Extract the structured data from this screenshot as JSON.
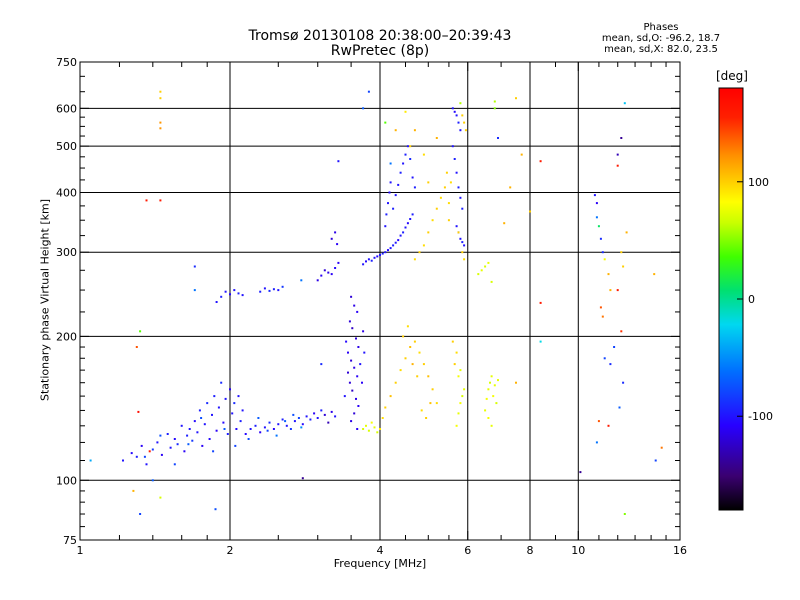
{
  "chart_data": {
    "type": "scatter",
    "title": "Tromsø 20130108 20:38:00–20:39:43",
    "subtitle": "RwPretec (8p)",
    "legend_title": "Phases",
    "legend_lines": [
      "mean, sd,O: -96.2, 18.7",
      "mean, sd,X:  82.0, 23.5"
    ],
    "xlabel": "Frequency [MHz]",
    "ylabel": "Stationary phase Virtual Height [km]",
    "x_scale": "log",
    "y_scale": "log",
    "xlim": [
      1,
      16
    ],
    "ylim": [
      75,
      750
    ],
    "x_ticks": [
      1,
      2,
      4,
      6,
      8,
      10,
      16
    ],
    "x_gridlines": [
      2,
      4,
      6,
      8,
      10
    ],
    "y_ticks": [
      75,
      100,
      200,
      300,
      400,
      500,
      600,
      750
    ],
    "y_gridlines": [
      100,
      200,
      300,
      400,
      500,
      600
    ],
    "grid": true,
    "colorbar": {
      "label": "[deg]",
      "range": [
        -180,
        180
      ],
      "ticks": [
        -100,
        0,
        100
      ]
    },
    "points": [
      [
        1.22,
        110,
        -100
      ],
      [
        1.27,
        114,
        -105
      ],
      [
        1.3,
        112,
        -95
      ],
      [
        1.33,
        118,
        -110
      ],
      [
        1.36,
        108,
        -100
      ],
      [
        1.4,
        116,
        -85
      ],
      [
        1.43,
        120,
        -100
      ],
      [
        1.46,
        113,
        -110
      ],
      [
        1.5,
        125,
        -95
      ],
      [
        1.52,
        117,
        -100
      ],
      [
        1.55,
        122,
        -105
      ],
      [
        1.57,
        119,
        -90
      ],
      [
        1.6,
        130,
        -100
      ],
      [
        1.62,
        115,
        -110
      ],
      [
        1.64,
        124,
        -95
      ],
      [
        1.66,
        128,
        -100
      ],
      [
        1.68,
        121,
        -85
      ],
      [
        1.7,
        133,
        -105
      ],
      [
        1.72,
        126,
        -100
      ],
      [
        1.74,
        140,
        -95
      ],
      [
        1.76,
        118,
        -110
      ],
      [
        1.78,
        131,
        -100
      ],
      [
        1.8,
        145,
        -90
      ],
      [
        1.82,
        122,
        -105
      ],
      [
        1.84,
        137,
        -100
      ],
      [
        1.86,
        150,
        -95
      ],
      [
        1.88,
        127,
        -110
      ],
      [
        1.9,
        142,
        -100
      ],
      [
        1.92,
        160,
        -90
      ],
      [
        1.94,
        132,
        -105
      ],
      [
        1.96,
        148,
        -100
      ],
      [
        1.98,
        125,
        -95
      ],
      [
        2.0,
        155,
        -110
      ],
      [
        2.02,
        138,
        -100
      ],
      [
        2.04,
        145,
        -90
      ],
      [
        2.06,
        128,
        -105
      ],
      [
        2.08,
        150,
        -100
      ],
      [
        2.1,
        133,
        -95
      ],
      [
        2.12,
        140,
        -100
      ],
      [
        2.15,
        125,
        -105
      ],
      [
        2.2,
        128,
        -100
      ],
      [
        2.25,
        130,
        -95
      ],
      [
        2.3,
        126,
        -110
      ],
      [
        2.35,
        129,
        -100
      ],
      [
        2.4,
        132,
        -90
      ],
      [
        2.45,
        128,
        -105
      ],
      [
        2.5,
        131,
        -100
      ],
      [
        2.55,
        134,
        -95
      ],
      [
        2.6,
        130,
        -100
      ],
      [
        2.65,
        128,
        -85
      ],
      [
        2.7,
        133,
        -100
      ],
      [
        2.75,
        135,
        -80
      ],
      [
        2.8,
        131,
        -105
      ],
      [
        2.85,
        136,
        -100
      ],
      [
        2.9,
        134,
        -95
      ],
      [
        2.95,
        138,
        -110
      ],
      [
        3.0,
        135,
        -100
      ],
      [
        3.05,
        140,
        -95
      ],
      [
        3.1,
        137,
        -120
      ],
      [
        3.15,
        132,
        -130
      ],
      [
        3.2,
        139,
        -115
      ],
      [
        3.25,
        136,
        -100
      ],
      [
        1.35,
        112,
        -80
      ],
      [
        1.45,
        124,
        -75
      ],
      [
        1.55,
        108,
        -80
      ],
      [
        1.65,
        119,
        -70
      ],
      [
        1.75,
        135,
        -75
      ],
      [
        1.85,
        115,
        -80
      ],
      [
        1.95,
        128,
        -70
      ],
      [
        2.05,
        118,
        -80
      ],
      [
        2.18,
        122,
        -75
      ],
      [
        2.28,
        135,
        -70
      ],
      [
        2.38,
        127,
        -80
      ],
      [
        2.48,
        124,
        -60
      ],
      [
        2.58,
        133,
        -70
      ],
      [
        2.68,
        137,
        -75
      ],
      [
        2.78,
        129,
        -50
      ],
      [
        1.88,
        236,
        -100
      ],
      [
        1.92,
        242,
        -95
      ],
      [
        1.96,
        248,
        -100
      ],
      [
        2.0,
        245,
        -105
      ],
      [
        2.04,
        250,
        -100
      ],
      [
        2.08,
        246,
        -95
      ],
      [
        2.12,
        244,
        -100
      ],
      [
        2.3,
        248,
        -95
      ],
      [
        2.35,
        252,
        -100
      ],
      [
        2.4,
        249,
        -90
      ],
      [
        2.45,
        251,
        -95
      ],
      [
        2.5,
        250,
        -100
      ],
      [
        2.55,
        254,
        -85
      ],
      [
        2.78,
        262,
        -60
      ],
      [
        3.0,
        262,
        -115
      ],
      [
        3.05,
        268,
        -110
      ],
      [
        3.1,
        275,
        -120
      ],
      [
        3.15,
        272,
        -115
      ],
      [
        3.2,
        270,
        -110
      ],
      [
        3.25,
        278,
        -105
      ],
      [
        3.3,
        285,
        -110
      ],
      [
        3.2,
        320,
        -120
      ],
      [
        3.25,
        330,
        -115
      ],
      [
        3.28,
        312,
        -110
      ],
      [
        3.5,
        242,
        -120
      ],
      [
        3.55,
        232,
        -115
      ],
      [
        3.6,
        225,
        -110
      ],
      [
        3.48,
        215,
        -120
      ],
      [
        3.52,
        208,
        -125
      ],
      [
        3.58,
        198,
        -120
      ],
      [
        3.62,
        190,
        -115
      ],
      [
        3.45,
        185,
        -110
      ],
      [
        3.5,
        178,
        -120
      ],
      [
        3.55,
        172,
        -115
      ],
      [
        3.6,
        165,
        -110
      ],
      [
        3.48,
        160,
        -120
      ],
      [
        3.52,
        154,
        -125
      ],
      [
        3.58,
        148,
        -115
      ],
      [
        3.62,
        143,
        -110
      ],
      [
        3.55,
        138,
        -120
      ],
      [
        3.5,
        133,
        -115
      ],
      [
        3.6,
        128,
        -110
      ],
      [
        3.65,
        175,
        -100
      ],
      [
        3.42,
        195,
        -105
      ],
      [
        3.7,
        205,
        -115
      ],
      [
        3.68,
        160,
        -110
      ],
      [
        3.4,
        150,
        -100
      ],
      [
        3.45,
        168,
        -120
      ],
      [
        3.72,
        185,
        -100
      ],
      [
        3.7,
        283,
        -100
      ],
      [
        3.75,
        287,
        -105
      ],
      [
        3.8,
        290,
        -100
      ],
      [
        3.85,
        288,
        -95
      ],
      [
        3.9,
        292,
        -100
      ],
      [
        3.95,
        294,
        -105
      ],
      [
        4.0,
        296,
        -100
      ],
      [
        4.05,
        298,
        -95
      ],
      [
        4.1,
        300,
        -100
      ],
      [
        4.15,
        303,
        -105
      ],
      [
        4.2,
        306,
        -100
      ],
      [
        4.25,
        310,
        -95
      ],
      [
        4.3,
        314,
        -100
      ],
      [
        4.35,
        318,
        -105
      ],
      [
        4.4,
        325,
        -100
      ],
      [
        4.45,
        330,
        -95
      ],
      [
        4.5,
        338,
        -100
      ],
      [
        4.55,
        345,
        -105
      ],
      [
        4.6,
        352,
        -100
      ],
      [
        4.65,
        360,
        -95
      ],
      [
        4.1,
        340,
        -100
      ],
      [
        4.12,
        360,
        -95
      ],
      [
        4.15,
        380,
        -100
      ],
      [
        4.18,
        400,
        -105
      ],
      [
        4.2,
        420,
        -100
      ],
      [
        4.25,
        370,
        -95
      ],
      [
        4.3,
        395,
        -100
      ],
      [
        4.35,
        415,
        -100
      ],
      [
        4.4,
        440,
        -95
      ],
      [
        4.45,
        460,
        -100
      ],
      [
        4.5,
        480,
        -95
      ],
      [
        4.55,
        500,
        -100
      ],
      [
        4.6,
        470,
        -90
      ],
      [
        4.65,
        430,
        -100
      ],
      [
        4.7,
        410,
        -95
      ],
      [
        5.6,
        600,
        -100
      ],
      [
        5.65,
        590,
        -105
      ],
      [
        5.7,
        580,
        -100
      ],
      [
        5.75,
        560,
        -95
      ],
      [
        5.8,
        540,
        -100
      ],
      [
        5.6,
        500,
        -100
      ],
      [
        5.65,
        470,
        -95
      ],
      [
        5.7,
        440,
        -100
      ],
      [
        5.75,
        410,
        -95
      ],
      [
        5.8,
        390,
        -100
      ],
      [
        5.85,
        370,
        -95
      ],
      [
        5.7,
        340,
        -100
      ],
      [
        5.75,
        330,
        -95
      ],
      [
        5.8,
        320,
        -100
      ],
      [
        5.85,
        315,
        -95
      ],
      [
        5.9,
        310,
        -100
      ],
      [
        4.0,
        128,
        90
      ],
      [
        4.05,
        135,
        95
      ],
      [
        4.1,
        142,
        100
      ],
      [
        4.2,
        150,
        105
      ],
      [
        4.3,
        160,
        100
      ],
      [
        4.4,
        170,
        95
      ],
      [
        4.5,
        180,
        100
      ],
      [
        4.6,
        190,
        105
      ],
      [
        4.7,
        195,
        100
      ],
      [
        4.8,
        185,
        95
      ],
      [
        4.9,
        175,
        100
      ],
      [
        5.0,
        165,
        105
      ],
      [
        5.1,
        155,
        100
      ],
      [
        5.2,
        145,
        95
      ],
      [
        4.45,
        200,
        100
      ],
      [
        4.55,
        210,
        95
      ],
      [
        4.65,
        175,
        110
      ],
      [
        4.75,
        165,
        100
      ],
      [
        4.85,
        140,
        95
      ],
      [
        4.95,
        135,
        100
      ],
      [
        5.05,
        145,
        105
      ],
      [
        3.7,
        128,
        70
      ],
      [
        3.75,
        130,
        75
      ],
      [
        3.8,
        127,
        70
      ],
      [
        3.85,
        132,
        80
      ],
      [
        3.9,
        129,
        75
      ],
      [
        3.95,
        126,
        70
      ],
      [
        4.7,
        290,
        95
      ],
      [
        4.8,
        300,
        100
      ],
      [
        4.9,
        310,
        95
      ],
      [
        5.0,
        330,
        100
      ],
      [
        5.1,
        350,
        95
      ],
      [
        5.2,
        370,
        100
      ],
      [
        5.3,
        390,
        95
      ],
      [
        5.4,
        410,
        100
      ],
      [
        5.5,
        380,
        95
      ],
      [
        5.5,
        350,
        100
      ],
      [
        5.55,
        420,
        95
      ],
      [
        5.45,
        440,
        100
      ],
      [
        5.7,
        130,
        80
      ],
      [
        5.75,
        138,
        75
      ],
      [
        5.8,
        145,
        80
      ],
      [
        5.85,
        150,
        70
      ],
      [
        5.9,
        155,
        75
      ],
      [
        5.75,
        165,
        80
      ],
      [
        5.8,
        170,
        75
      ],
      [
        6.5,
        140,
        75
      ],
      [
        6.55,
        148,
        80
      ],
      [
        6.6,
        155,
        75
      ],
      [
        6.65,
        160,
        70
      ],
      [
        6.7,
        165,
        75
      ],
      [
        6.75,
        150,
        80
      ],
      [
        6.8,
        158,
        75
      ],
      [
        6.85,
        145,
        70
      ],
      [
        6.9,
        162,
        75
      ],
      [
        6.6,
        135,
        80
      ],
      [
        6.7,
        130,
        75
      ],
      [
        5.8,
        615,
        60
      ],
      [
        5.85,
        580,
        100
      ],
      [
        5.9,
        560,
        100
      ],
      [
        5.95,
        540,
        100
      ],
      [
        5.75,
        330,
        100
      ],
      [
        5.85,
        300,
        100
      ],
      [
        5.9,
        290,
        95
      ],
      [
        5.6,
        195,
        100
      ],
      [
        5.7,
        185,
        95
      ],
      [
        5.65,
        175,
        100
      ],
      [
        6.3,
        270,
        70
      ],
      [
        6.4,
        275,
        75
      ],
      [
        6.5,
        280,
        70
      ],
      [
        6.6,
        285,
        75
      ],
      [
        6.7,
        260,
        70
      ],
      [
        1.32,
        85,
        -80
      ],
      [
        1.45,
        92,
        70
      ],
      [
        1.4,
        100,
        -70
      ],
      [
        1.28,
        95,
        110
      ],
      [
        1.38,
        115,
        160
      ],
      [
        1.31,
        139,
        170
      ],
      [
        1.3,
        190,
        140
      ],
      [
        1.32,
        205,
        40
      ],
      [
        1.36,
        385,
        160
      ],
      [
        1.45,
        385,
        160
      ],
      [
        1.45,
        650,
        100
      ],
      [
        1.45,
        630,
        100
      ],
      [
        1.45,
        560,
        120
      ],
      [
        1.45,
        545,
        120
      ],
      [
        1.7,
        280,
        -90
      ],
      [
        1.7,
        250,
        -60
      ],
      [
        1.05,
        110,
        -40
      ],
      [
        1.87,
        87,
        -75
      ],
      [
        2.8,
        101,
        -140
      ],
      [
        3.05,
        175,
        -90
      ],
      [
        3.3,
        465,
        -100
      ],
      [
        3.7,
        600,
        -70
      ],
      [
        3.8,
        650,
        -80
      ],
      [
        4.1,
        560,
        40
      ],
      [
        4.2,
        460,
        -60
      ],
      [
        4.3,
        540,
        110
      ],
      [
        4.5,
        590,
        90
      ],
      [
        4.6,
        500,
        100
      ],
      [
        4.7,
        540,
        110
      ],
      [
        4.9,
        480,
        95
      ],
      [
        5.0,
        420,
        100
      ],
      [
        5.2,
        520,
        110
      ],
      [
        6.8,
        620,
        60
      ],
      [
        6.8,
        600,
        50
      ],
      [
        6.9,
        520,
        -90
      ],
      [
        7.5,
        630,
        100
      ],
      [
        7.3,
        410,
        110
      ],
      [
        7.1,
        345,
        110
      ],
      [
        7.7,
        480,
        110
      ],
      [
        7.5,
        160,
        110
      ],
      [
        8.0,
        365,
        100
      ],
      [
        8.4,
        465,
        160
      ],
      [
        8.4,
        235,
        160
      ],
      [
        8.4,
        195,
        -20
      ],
      [
        10.1,
        104,
        -140
      ],
      [
        10.8,
        395,
        -100
      ],
      [
        10.9,
        380,
        -110
      ],
      [
        10.9,
        355,
        -60
      ],
      [
        11.0,
        340,
        10
      ],
      [
        11.1,
        320,
        -90
      ],
      [
        11.2,
        300,
        -90
      ],
      [
        11.3,
        290,
        80
      ],
      [
        11.5,
        270,
        110
      ],
      [
        11.6,
        250,
        110
      ],
      [
        11.1,
        230,
        140
      ],
      [
        11.2,
        220,
        130
      ],
      [
        11.3,
        180,
        -80
      ],
      [
        11.6,
        175,
        -90
      ],
      [
        11.0,
        133,
        140
      ],
      [
        11.5,
        130,
        160
      ],
      [
        12.2,
        520,
        -140
      ],
      [
        12.0,
        480,
        -130
      ],
      [
        12.0,
        455,
        160
      ],
      [
        12.0,
        250,
        160
      ],
      [
        12.2,
        205,
        150
      ],
      [
        12.4,
        85,
        50
      ],
      [
        12.4,
        615,
        -30
      ],
      [
        12.2,
        300,
        100
      ],
      [
        12.3,
        280,
        100
      ],
      [
        12.5,
        330,
        110
      ],
      [
        14.2,
        270,
        110
      ],
      [
        14.7,
        117,
        130
      ],
      [
        14.3,
        110,
        -80
      ],
      [
        11.8,
        190,
        -80
      ],
      [
        12.3,
        160,
        -90
      ],
      [
        12.1,
        142,
        -70
      ],
      [
        10.9,
        120,
        -60
      ]
    ]
  }
}
